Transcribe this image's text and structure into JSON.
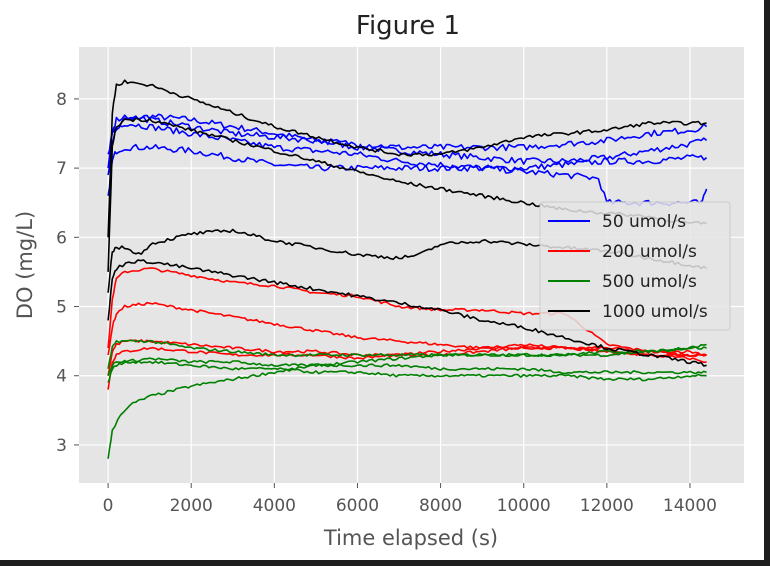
{
  "window": {
    "title": "Figure 1"
  },
  "chart_data": {
    "type": "line",
    "title": "Figure 1",
    "xlabel": "Time elapsed (s)",
    "ylabel": "DO (mg/L)",
    "xlim": [
      -700,
      15300
    ],
    "ylim": [
      2.45,
      8.75
    ],
    "xticks": [
      0,
      2000,
      4000,
      6000,
      8000,
      10000,
      12000,
      14000
    ],
    "yticks": [
      3,
      4,
      5,
      6,
      7,
      8
    ],
    "grid": true,
    "background": "#e5e5e5",
    "legend_position": "right",
    "legend": [
      {
        "name": "50 umol/s",
        "color": "#0000ff"
      },
      {
        "name": "200 umol/s",
        "color": "#ff0000"
      },
      {
        "name": "500 umol/s",
        "color": "#008000"
      },
      {
        "name": "1000 umol/s",
        "color": "#000000"
      }
    ],
    "series": [
      {
        "group": "50 umol/s",
        "color": "#0000ff",
        "x": [
          0,
          100,
          200,
          400,
          1000,
          2000,
          3000,
          4000,
          5000,
          6000,
          7000,
          8000,
          9000,
          10000,
          11000,
          12000,
          13000,
          14000,
          14400
        ],
        "y": [
          6.9,
          7.4,
          7.55,
          7.7,
          7.75,
          7.7,
          7.6,
          7.5,
          7.4,
          7.3,
          7.25,
          7.2,
          7.15,
          7.1,
          7.1,
          7.15,
          7.25,
          7.35,
          7.4
        ]
      },
      {
        "group": "50 umol/s",
        "color": "#0000ff",
        "x": [
          0,
          100,
          200,
          400,
          1000,
          2000,
          3000,
          4000,
          5000,
          6000,
          7000,
          8000,
          9000,
          10000,
          11000,
          12000,
          13000,
          14000,
          14400
        ],
        "y": [
          6.6,
          7.1,
          7.25,
          7.3,
          7.3,
          7.25,
          7.15,
          7.05,
          7.0,
          7.0,
          7.0,
          7.0,
          7.0,
          7.0,
          7.05,
          7.1,
          7.1,
          7.15,
          7.15
        ]
      },
      {
        "group": "50 umol/s",
        "color": "#0000ff",
        "x": [
          0,
          100,
          200,
          400,
          1000,
          2000,
          3000,
          4000,
          5000,
          6000,
          7000,
          8000,
          9000,
          10000,
          11000,
          11800,
          12000,
          13000,
          14000,
          14300,
          14400
        ],
        "y": [
          7.2,
          7.5,
          7.6,
          7.65,
          7.6,
          7.5,
          7.4,
          7.3,
          7.25,
          7.2,
          7.1,
          7.05,
          7.0,
          6.95,
          6.9,
          6.85,
          6.5,
          6.5,
          6.5,
          6.5,
          6.7
        ]
      },
      {
        "group": "50 umol/s",
        "color": "#0000ff",
        "x": [
          0,
          100,
          200,
          400,
          1000,
          2000,
          3000,
          4000,
          5000,
          6000,
          7000,
          8000,
          9000,
          10000,
          11000,
          12000,
          13000,
          14000,
          14400
        ],
        "y": [
          7.0,
          7.55,
          7.7,
          7.75,
          7.7,
          7.6,
          7.5,
          7.45,
          7.4,
          7.35,
          7.3,
          7.3,
          7.3,
          7.3,
          7.35,
          7.4,
          7.5,
          7.55,
          7.6
        ]
      },
      {
        "group": "200 umol/s",
        "color": "#ff0000",
        "x": [
          0,
          100,
          200,
          400,
          1000,
          2000,
          3000,
          4000,
          5000,
          6000,
          7000,
          8000,
          9000,
          10000,
          11000,
          12000,
          13000,
          14000,
          14400
        ],
        "y": [
          4.4,
          5.1,
          5.4,
          5.5,
          5.55,
          5.45,
          5.35,
          5.3,
          5.2,
          5.15,
          5.0,
          4.95,
          4.95,
          4.9,
          4.9,
          4.45,
          4.35,
          4.3,
          4.3
        ]
      },
      {
        "group": "200 umol/s",
        "color": "#ff0000",
        "x": [
          0,
          100,
          200,
          400,
          1000,
          2000,
          3000,
          4000,
          5000,
          6000,
          7000,
          8000,
          9000,
          10000,
          11000,
          12000,
          13000,
          14000,
          14400
        ],
        "y": [
          4.3,
          4.7,
          4.9,
          5.0,
          5.05,
          4.95,
          4.85,
          4.75,
          4.65,
          4.55,
          4.5,
          4.45,
          4.4,
          4.4,
          4.4,
          4.4,
          4.35,
          4.35,
          4.3
        ]
      },
      {
        "group": "200 umol/s",
        "color": "#ff0000",
        "x": [
          0,
          100,
          200,
          400,
          1000,
          2000,
          3000,
          4000,
          5000,
          6000,
          7000,
          8000,
          9000,
          10000,
          11000,
          12000,
          13000,
          14000,
          14400
        ],
        "y": [
          4.0,
          4.35,
          4.45,
          4.5,
          4.5,
          4.45,
          4.4,
          4.35,
          4.35,
          4.3,
          4.3,
          4.3,
          4.35,
          4.4,
          4.4,
          4.35,
          4.3,
          4.3,
          4.3
        ]
      },
      {
        "group": "200 umol/s",
        "color": "#ff0000",
        "x": [
          0,
          100,
          200,
          400,
          1000,
          2000,
          3000,
          4000,
          5000,
          6000,
          7000,
          8000,
          9000,
          10000,
          11000,
          12000,
          13000,
          14000,
          14400
        ],
        "y": [
          3.8,
          4.2,
          4.3,
          4.35,
          4.4,
          4.35,
          4.3,
          4.3,
          4.3,
          4.25,
          4.3,
          4.35,
          4.4,
          4.45,
          4.4,
          4.35,
          4.3,
          4.25,
          4.2
        ]
      },
      {
        "group": "500 umol/s",
        "color": "#008000",
        "x": [
          0,
          100,
          300,
          600,
          1000,
          2000,
          3000,
          4000,
          5000,
          6000,
          7000,
          8000,
          9000,
          10000,
          11000,
          12000,
          13000,
          14000,
          14400
        ],
        "y": [
          2.8,
          3.2,
          3.45,
          3.6,
          3.7,
          3.85,
          3.95,
          4.05,
          4.15,
          4.2,
          4.25,
          4.3,
          4.3,
          4.3,
          4.3,
          4.3,
          4.35,
          4.4,
          4.45
        ]
      },
      {
        "group": "500 umol/s",
        "color": "#008000",
        "x": [
          0,
          100,
          200,
          400,
          1000,
          2000,
          3000,
          4000,
          5000,
          6000,
          7000,
          8000,
          9000,
          10000,
          11000,
          12000,
          13000,
          14000,
          14400
        ],
        "y": [
          4.1,
          4.4,
          4.5,
          4.5,
          4.5,
          4.4,
          4.35,
          4.3,
          4.3,
          4.3,
          4.3,
          4.3,
          4.3,
          4.3,
          4.3,
          4.35,
          4.35,
          4.4,
          4.4
        ]
      },
      {
        "group": "500 umol/s",
        "color": "#008000",
        "x": [
          0,
          100,
          200,
          400,
          1000,
          2000,
          3000,
          4000,
          5000,
          6000,
          7000,
          8000,
          9000,
          10000,
          11000,
          12000,
          13000,
          14000,
          14400
        ],
        "y": [
          3.9,
          4.1,
          4.15,
          4.2,
          4.25,
          4.2,
          4.2,
          4.15,
          4.15,
          4.15,
          4.15,
          4.1,
          4.1,
          4.1,
          4.05,
          4.05,
          4.05,
          4.05,
          4.05
        ]
      },
      {
        "group": "500 umol/s",
        "color": "#008000",
        "x": [
          0,
          100,
          200,
          400,
          1000,
          2000,
          3000,
          4000,
          5000,
          6000,
          7000,
          8000,
          9000,
          10000,
          11000,
          12000,
          13000,
          14000,
          14400
        ],
        "y": [
          4.0,
          4.15,
          4.2,
          4.2,
          4.2,
          4.15,
          4.1,
          4.1,
          4.05,
          4.05,
          4.0,
          4.0,
          4.0,
          4.0,
          4.0,
          3.95,
          3.95,
          4.0,
          4.0
        ]
      },
      {
        "group": "1000 umol/s",
        "color": "#000000",
        "x": [
          0,
          100,
          200,
          400,
          1000,
          2000,
          3000,
          4000,
          5000,
          6000,
          7000,
          8000,
          9000,
          10000,
          11000,
          12000,
          13000,
          14000,
          14400
        ],
        "y": [
          6.0,
          7.8,
          8.2,
          8.25,
          8.2,
          8.0,
          7.8,
          7.6,
          7.45,
          7.3,
          7.2,
          7.2,
          7.3,
          7.45,
          7.5,
          7.55,
          7.65,
          7.65,
          7.65
        ]
      },
      {
        "group": "1000 umol/s",
        "color": "#000000",
        "x": [
          0,
          100,
          200,
          400,
          1000,
          2000,
          3000,
          4000,
          5000,
          6000,
          7000,
          8000,
          9000,
          10000,
          11000,
          12000,
          13000,
          14000,
          14400
        ],
        "y": [
          5.5,
          7.3,
          7.6,
          7.7,
          7.7,
          7.55,
          7.4,
          7.25,
          7.1,
          6.95,
          6.8,
          6.7,
          6.6,
          6.5,
          6.4,
          6.35,
          6.3,
          6.2,
          6.2
        ]
      },
      {
        "group": "1000 umol/s",
        "color": "#000000",
        "x": [
          0,
          100,
          200,
          400,
          800,
          1000,
          2000,
          3000,
          4000,
          5000,
          6000,
          7000,
          7500,
          8000,
          9000,
          10000,
          11000,
          12000,
          13000,
          14000,
          14400
        ],
        "y": [
          5.2,
          5.8,
          5.85,
          5.85,
          5.75,
          5.9,
          6.05,
          6.1,
          5.95,
          5.85,
          5.75,
          5.7,
          5.75,
          5.9,
          5.95,
          5.9,
          5.85,
          5.8,
          5.7,
          5.6,
          5.55
        ]
      },
      {
        "group": "1000 umol/s",
        "color": "#000000",
        "x": [
          0,
          100,
          200,
          500,
          1000,
          2000,
          3000,
          4000,
          5000,
          6000,
          7000,
          8000,
          9000,
          10000,
          11000,
          12000,
          13000,
          14000,
          14400
        ],
        "y": [
          4.8,
          5.4,
          5.55,
          5.65,
          5.65,
          5.55,
          5.45,
          5.35,
          5.25,
          5.15,
          5.05,
          4.95,
          4.8,
          4.7,
          4.55,
          4.4,
          4.3,
          4.2,
          4.15
        ]
      }
    ]
  }
}
